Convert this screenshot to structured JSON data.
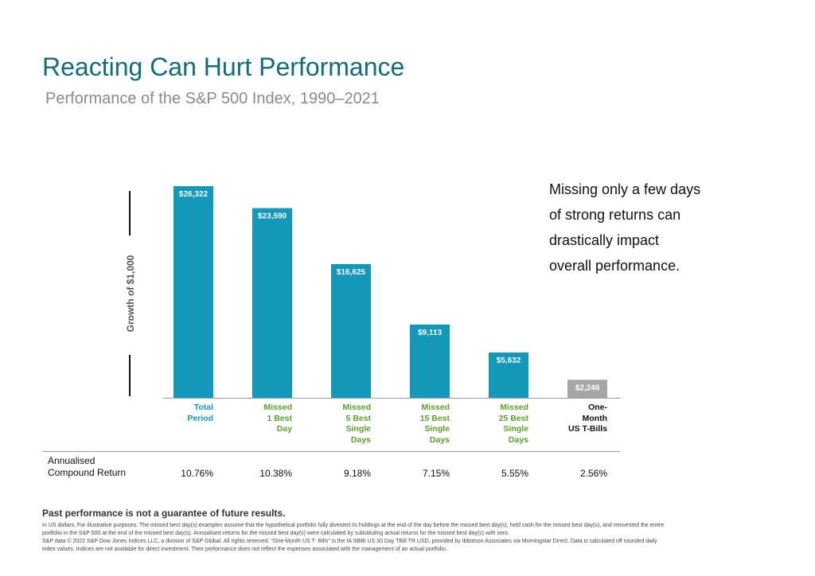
{
  "header": {
    "title": "Reacting Can Hurt Performance",
    "subtitle": "Performance of the S&P 500 Index, 1990–2021"
  },
  "chart_data": {
    "type": "bar",
    "categories": [
      [
        "Total",
        "Period"
      ],
      [
        "Missed",
        "1 Best",
        "Day"
      ],
      [
        "Missed",
        "5 Best",
        "Single",
        "Days"
      ],
      [
        "Missed",
        "15 Best",
        "Single",
        "Days"
      ],
      [
        "Missed",
        "25 Best",
        "Single",
        "Days"
      ],
      [
        "One-",
        "Month",
        "US T-Bills"
      ]
    ],
    "values": [
      26322,
      23590,
      16625,
      9113,
      5632,
      2246
    ],
    "value_labels": [
      "$26,322",
      "$23,590",
      "$16,625",
      "$9,113",
      "$5,632",
      "$2,246"
    ],
    "ylabel": "Growth of $1,000",
    "ylim": [
      0,
      26322
    ],
    "grid": false,
    "colors": {
      "bars": [
        "#1298bb",
        "#1298bb",
        "#1298bb",
        "#1298bb",
        "#1298bb",
        "#a6a6a6"
      ],
      "category_labels": [
        "#1298bb",
        "#5aa02c",
        "#5aa02c",
        "#5aa02c",
        "#5aa02c",
        "#111111"
      ]
    }
  },
  "annotation": {
    "lines": [
      "Missing only a few days",
      "of strong returns can",
      "drastically impact",
      "overall performance."
    ]
  },
  "returns": {
    "label_lines": [
      "Annualised",
      "Compound Return"
    ],
    "values": [
      "10.76%",
      "10.38%",
      "9.18%",
      "7.15%",
      "5.55%",
      "2.56%"
    ]
  },
  "footer": {
    "heading": "Past performance is not a guarantee of future results.",
    "lines": [
      "In US dollars. For illustrative purposes. The missed best day(s) examples assume that the hypothetical portfolio fully divested its holdings at the end of the day before the missed best day(s), held cash for the missed best day(s), and reinvested the entire",
      "portfolio in the S&P 500 at the end of the missed best day(s). Annualised returns for the missed best day(s) were calculated by substituting actual returns for the missed best day(s) with zero.",
      "S&P data © 2022 S&P Dow Jones Indices LLC, a division of S&P Global. All rights reserved. “One-Month US T- Bills” is the IA SBBI US 30 Day TBill TR USD, provided by Ibbotson Associates via Morningstar Direct. Data is calculated off rounded daily",
      "index values. Indices are not available for direct investment. Their performance does not reflect the expenses associated with the management of an actual portfolio."
    ]
  }
}
